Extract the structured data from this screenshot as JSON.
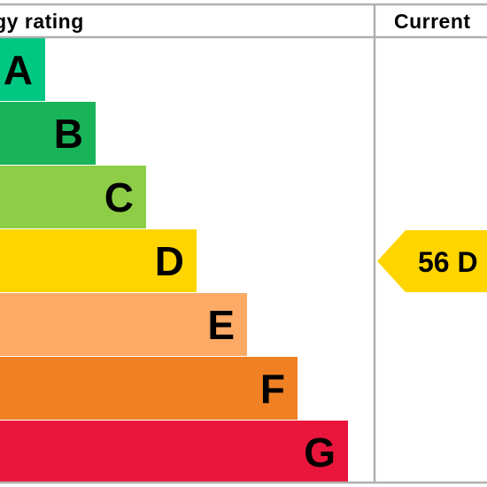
{
  "chart_data": {
    "type": "bar",
    "title": "Energy rating",
    "column_headers": {
      "rating": "Energy rating",
      "current": "Current"
    },
    "bands": [
      {
        "letter": "A",
        "color": "#00c781",
        "length": 1
      },
      {
        "letter": "B",
        "color": "#19b459",
        "length": 2
      },
      {
        "letter": "C",
        "color": "#8dce46",
        "length": 3
      },
      {
        "letter": "D",
        "color": "#ffd500",
        "length": 4
      },
      {
        "letter": "E",
        "color": "#fcaa65",
        "length": 5
      },
      {
        "letter": "F",
        "color": "#ef8023",
        "length": 6
      },
      {
        "letter": "G",
        "color": "#e9153b",
        "length": 7
      }
    ],
    "current": {
      "score": 56,
      "band": "D",
      "label": "56 D",
      "color": "#ffd500"
    },
    "border_color": "#b0b0b0"
  }
}
